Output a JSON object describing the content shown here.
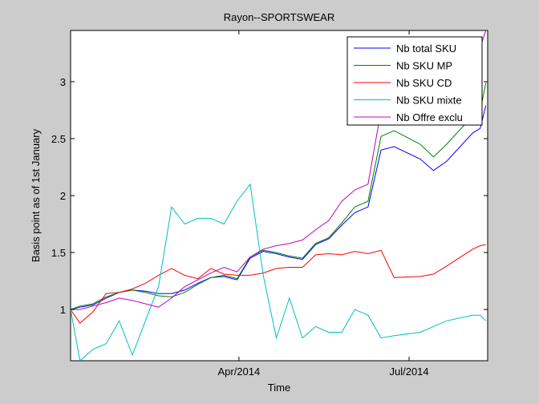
{
  "chart_data": {
    "type": "line",
    "title": "Rayon--SPORTSWEAR",
    "xlabel": "Time",
    "ylabel": "Basis point as of 1st January",
    "x_type": "date",
    "xlim": [
      "2014-01-01",
      "2014-08-12"
    ],
    "ylim": [
      0.55,
      3.45
    ],
    "x_ticks": [
      {
        "value": "2014-04-01",
        "label": "Apr/2014"
      },
      {
        "value": "2014-07-01",
        "label": "Jul/2014"
      }
    ],
    "y_ticks": [
      {
        "value": 1,
        "label": "1"
      },
      {
        "value": 1.5,
        "label": "1.5"
      },
      {
        "value": 2,
        "label": "2"
      },
      {
        "value": 2.5,
        "label": "2.5"
      },
      {
        "value": 3,
        "label": "3"
      }
    ],
    "grid": false,
    "legend_position": "top-right",
    "x": [
      "2014-01-01",
      "2014-01-06",
      "2014-01-13",
      "2014-01-20",
      "2014-01-27",
      "2014-02-03",
      "2014-02-10",
      "2014-02-17",
      "2014-02-24",
      "2014-03-03",
      "2014-03-10",
      "2014-03-17",
      "2014-03-24",
      "2014-03-31",
      "2014-04-07",
      "2014-04-14",
      "2014-04-21",
      "2014-04-28",
      "2014-05-05",
      "2014-05-12",
      "2014-05-19",
      "2014-05-26",
      "2014-06-02",
      "2014-06-09",
      "2014-06-16",
      "2014-06-23",
      "2014-07-07",
      "2014-07-14",
      "2014-07-21",
      "2014-08-04",
      "2014-08-08",
      "2014-08-11"
    ],
    "series": [
      {
        "name": "Nb total SKU",
        "color": "#0000ff",
        "values": [
          1,
          1.02,
          1.04,
          1.1,
          1.15,
          1.17,
          1.16,
          1.14,
          1.14,
          1.17,
          1.23,
          1.28,
          1.29,
          1.26,
          1.45,
          1.51,
          1.49,
          1.46,
          1.44,
          1.57,
          1.62,
          1.74,
          1.85,
          1.9,
          2.4,
          2.43,
          2.32,
          2.22,
          2.3,
          2.55,
          2.59,
          2.79
        ]
      },
      {
        "name": "Nb SKU MP",
        "color": "#008000",
        "values": [
          1,
          1.03,
          1.05,
          1.11,
          1.15,
          1.17,
          1.15,
          1.12,
          1.11,
          1.15,
          1.22,
          1.28,
          1.3,
          1.27,
          1.46,
          1.52,
          1.5,
          1.47,
          1.45,
          1.58,
          1.63,
          1.76,
          1.9,
          1.95,
          2.52,
          2.57,
          2.45,
          2.34,
          2.45,
          2.7,
          2.74,
          2.99
        ]
      },
      {
        "name": "Nb SKU CD",
        "color": "#ff0000",
        "values": [
          1,
          0.88,
          0.98,
          1.14,
          1.15,
          1.18,
          1.23,
          1.3,
          1.36,
          1.3,
          1.27,
          1.36,
          1.31,
          1.3,
          1.3,
          1.32,
          1.36,
          1.37,
          1.37,
          1.48,
          1.49,
          1.48,
          1.51,
          1.49,
          1.52,
          1.28,
          1.29,
          1.31,
          1.38,
          1.53,
          1.56,
          1.57
        ]
      },
      {
        "name": "Nb SKU mixte",
        "color": "#00bfbf",
        "values": [
          1,
          0.55,
          0.65,
          0.7,
          0.9,
          0.6,
          0.9,
          1.2,
          1.9,
          1.75,
          1.8,
          1.8,
          1.75,
          1.95,
          2.1,
          1.3,
          0.75,
          1.1,
          0.75,
          0.85,
          0.8,
          0.8,
          1,
          0.95,
          0.75,
          0.77,
          0.8,
          0.85,
          0.9,
          0.95,
          0.95,
          0.9
        ]
      },
      {
        "name": "Nb Offre exclu",
        "color": "#bf00bf",
        "values": [
          1,
          1,
          1.03,
          1.06,
          1.1,
          1.08,
          1.05,
          1.02,
          1.1,
          1.2,
          1.26,
          1.32,
          1.37,
          1.33,
          1.46,
          1.53,
          1.56,
          1.58,
          1.61,
          1.7,
          1.78,
          1.95,
          2.05,
          2.1,
          2.75,
          2.85,
          2.9,
          2.95,
          3.05,
          3.2,
          3.3,
          3.45
        ]
      }
    ]
  }
}
